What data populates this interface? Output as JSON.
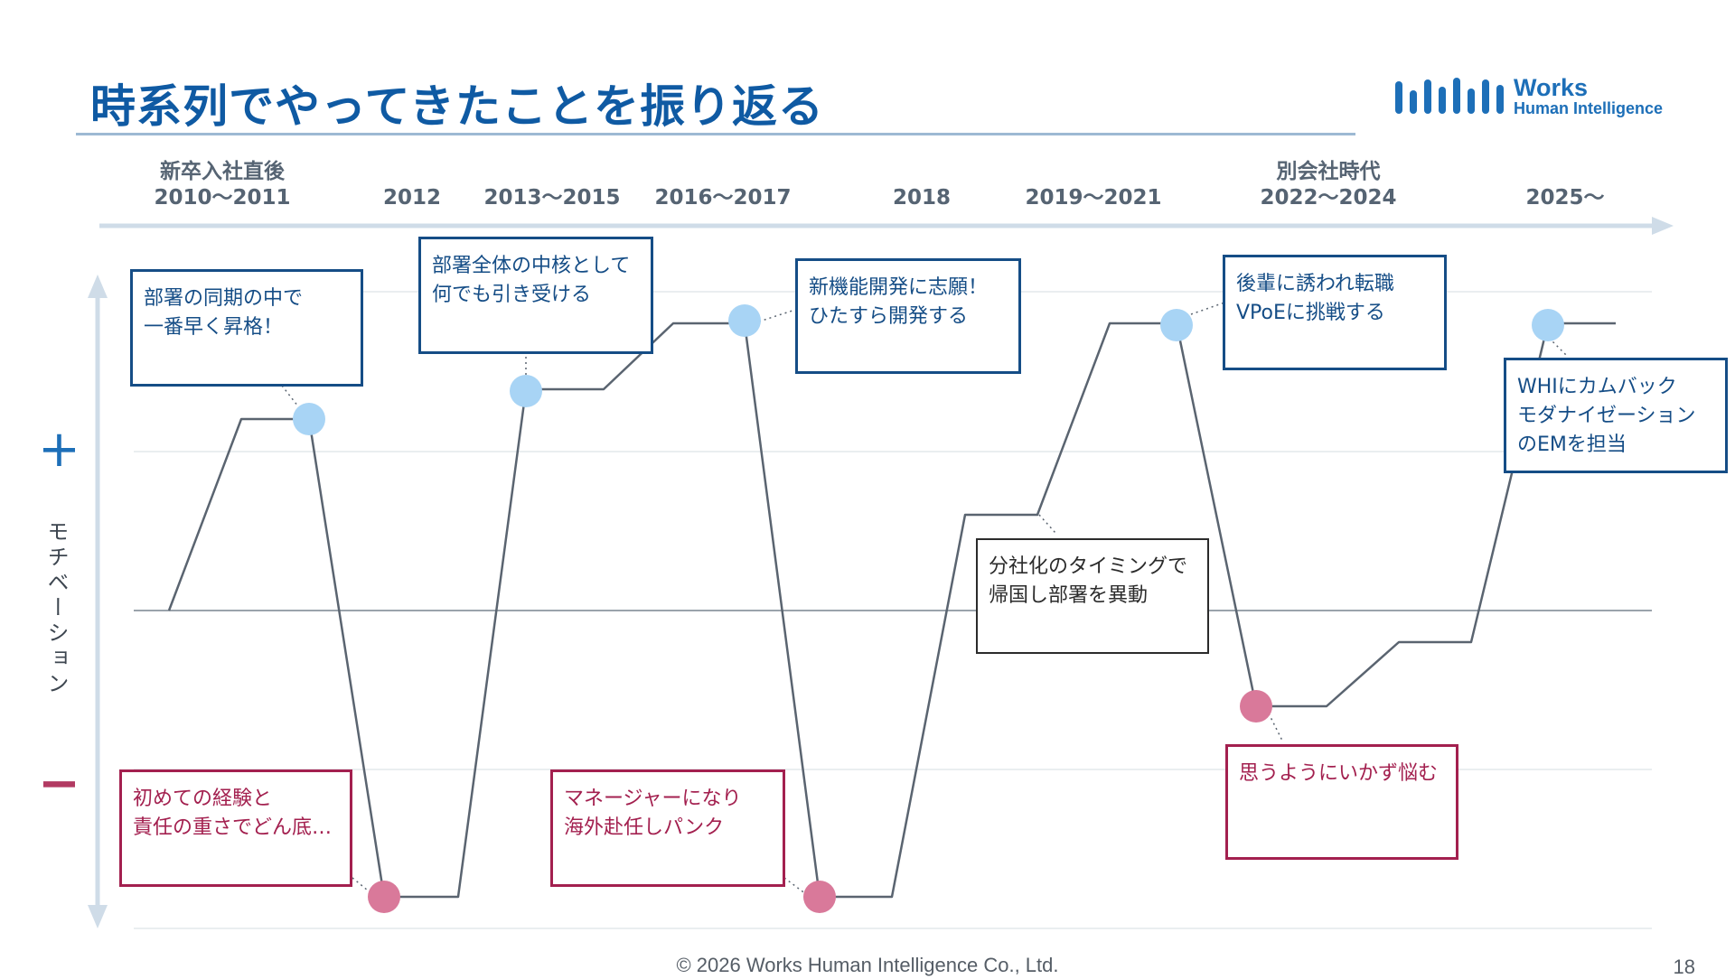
{
  "title": "時系列でやってきたことを振り返る",
  "logo": {
    "line1": "Works",
    "line2": "Human Intelligence",
    "brand_color": "#1d6fb8"
  },
  "timeline": {
    "periods": [
      {
        "label": "新卒入社直後",
        "years": "2010〜2011"
      },
      {
        "label": "",
        "years": "2012"
      },
      {
        "label": "",
        "years": "2013〜2015"
      },
      {
        "label": "",
        "years": "2016〜2017"
      },
      {
        "label": "",
        "years": "2018"
      },
      {
        "label": "",
        "years": "2019〜2021"
      },
      {
        "label": "別会社時代",
        "years": "2022〜2024"
      },
      {
        "label": "",
        "years": "2025〜"
      }
    ]
  },
  "axis": {
    "label": "モチベーション",
    "plus": "+",
    "minus": "−"
  },
  "events": [
    {
      "text": "部署の同期の中で\n一番早く昇格！",
      "polarity": "positive"
    },
    {
      "text": "初めての経験と\n責任の重さでどん底…",
      "polarity": "negative"
    },
    {
      "text": "部署全体の中核として\n何でも引き受ける",
      "polarity": "positive"
    },
    {
      "text": "マネージャーになり\n海外赴任しパンク",
      "polarity": "negative"
    },
    {
      "text": "新機能開発に志願！\nひたすら開発する",
      "polarity": "positive"
    },
    {
      "text": "分社化のタイミングで\n帰国し部署を異動",
      "polarity": "neutral"
    },
    {
      "text": "後輩に誘われ転職\nVPoEに挑戦する",
      "polarity": "positive"
    },
    {
      "text": "思うようにいかず悩む",
      "polarity": "negative"
    },
    {
      "text": "WHIにカムバック\nモダナイゼーション\nのEMを担当",
      "polarity": "positive"
    }
  ],
  "colors": {
    "title": "#0f5aa3",
    "positive": "#154d86",
    "negative": "#a3204f",
    "positive_marker": "#a8d4f5",
    "negative_marker": "#d9799a",
    "curve": "#5a6470",
    "arrow": "#cfdce8"
  },
  "footer": {
    "copyright": "© 2026 Works Human Intelligence Co., Ltd.",
    "page": "18"
  }
}
